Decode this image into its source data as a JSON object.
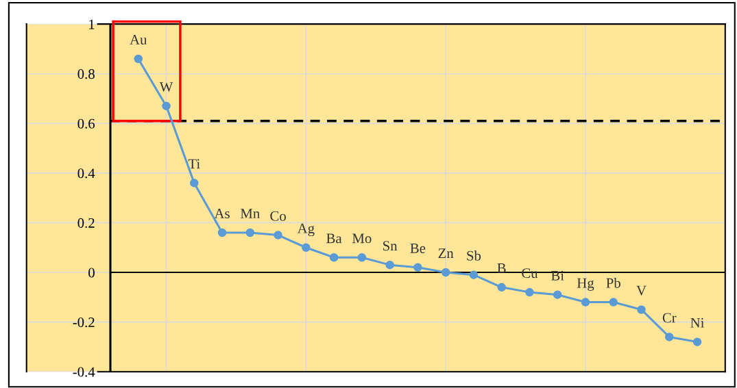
{
  "chart_data": {
    "type": "line",
    "categories": [
      null,
      null,
      null,
      null,
      null,
      null,
      null,
      null,
      null,
      null,
      null,
      null,
      null,
      null,
      null,
      null,
      null,
      null,
      null,
      null,
      null
    ],
    "series": [
      {
        "color": "#5b9bd5",
        "values": [
          0.86,
          0.67,
          0.36,
          0.16,
          0.16,
          0.15,
          0.1,
          0.06,
          0.06,
          0.03,
          0.02,
          0.0,
          -0.01,
          -0.06,
          -0.08,
          -0.09,
          -0.12,
          -0.12,
          -0.15,
          -0.26,
          -0.28
        ]
      }
    ],
    "ylim": [
      -0.4,
      1
    ],
    "yticks": [
      -0.4,
      -0.2,
      0,
      0.2,
      0.4,
      0.6,
      0.8,
      1
    ],
    "tick_labels": "y",
    "grid": true,
    "marker": "circle",
    "line_style": "solid",
    "ref_lines": [
      {
        "axis": "y",
        "value": 0.61,
        "color": "#000000",
        "line_style": "dashed"
      }
    ],
    "annotations": [
      "Au",
      "W",
      "Ti",
      "As",
      "Mn",
      "Co",
      "Ag",
      "Ba",
      "Mo",
      "Sn",
      "Be",
      "Zn",
      "Sb",
      "B",
      "Cu",
      "Bi",
      "Hg",
      "Pb",
      "V",
      "Cr",
      "Ni"
    ]
  }
}
